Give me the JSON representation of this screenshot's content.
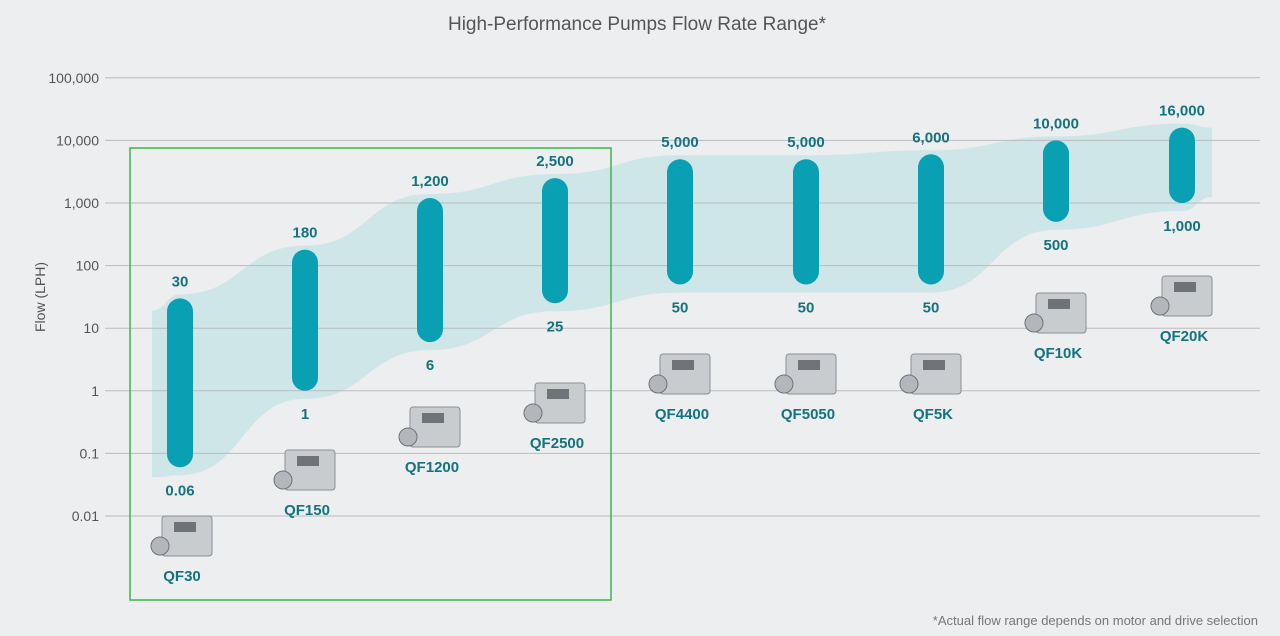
{
  "chart_data": {
    "type": "bar",
    "subtype": "floating-range",
    "title": "High-Performance Pumps Flow Rate Range*",
    "ylabel": "Flow (LPH)",
    "xlabel": "",
    "yscale": "log",
    "ylim": [
      0.01,
      100000
    ],
    "yticks": [
      "0.01",
      "0.1",
      "1",
      "10",
      "100",
      "1,000",
      "10,000",
      "100,000"
    ],
    "ytick_values": [
      0.01,
      0.1,
      1,
      10,
      100,
      1000,
      10000,
      100000
    ],
    "grid": true,
    "categories": [
      "QF30",
      "QF150",
      "QF1200",
      "QF2500",
      "QF4400",
      "QF5050",
      "QF5K",
      "QF10K",
      "QF20K"
    ],
    "series": [
      {
        "name": "min",
        "values": [
          0.06,
          1,
          6,
          25,
          50,
          50,
          50,
          500,
          1000
        ],
        "labels": [
          "0.06",
          "1",
          "6",
          "25",
          "50",
          "50",
          "50",
          "500",
          "1,000"
        ]
      },
      {
        "name": "max",
        "values": [
          30,
          180,
          1200,
          2500,
          5000,
          5000,
          6000,
          10000,
          16000
        ],
        "labels": [
          "30",
          "180",
          "1,200",
          "2,500",
          "5,000",
          "5,000",
          "6,000",
          "10,000",
          "16,000"
        ]
      }
    ],
    "highlight_group": [
      "QF30",
      "QF150",
      "QF1200",
      "QF2500"
    ],
    "footnote": "*Actual flow range depends on motor and drive selection",
    "colors": {
      "bar": "#0aa0b4",
      "band": "#cfe6e9",
      "label": "#14737f",
      "highlight": "#3cb54a",
      "grid": "#b9bcbe"
    }
  }
}
